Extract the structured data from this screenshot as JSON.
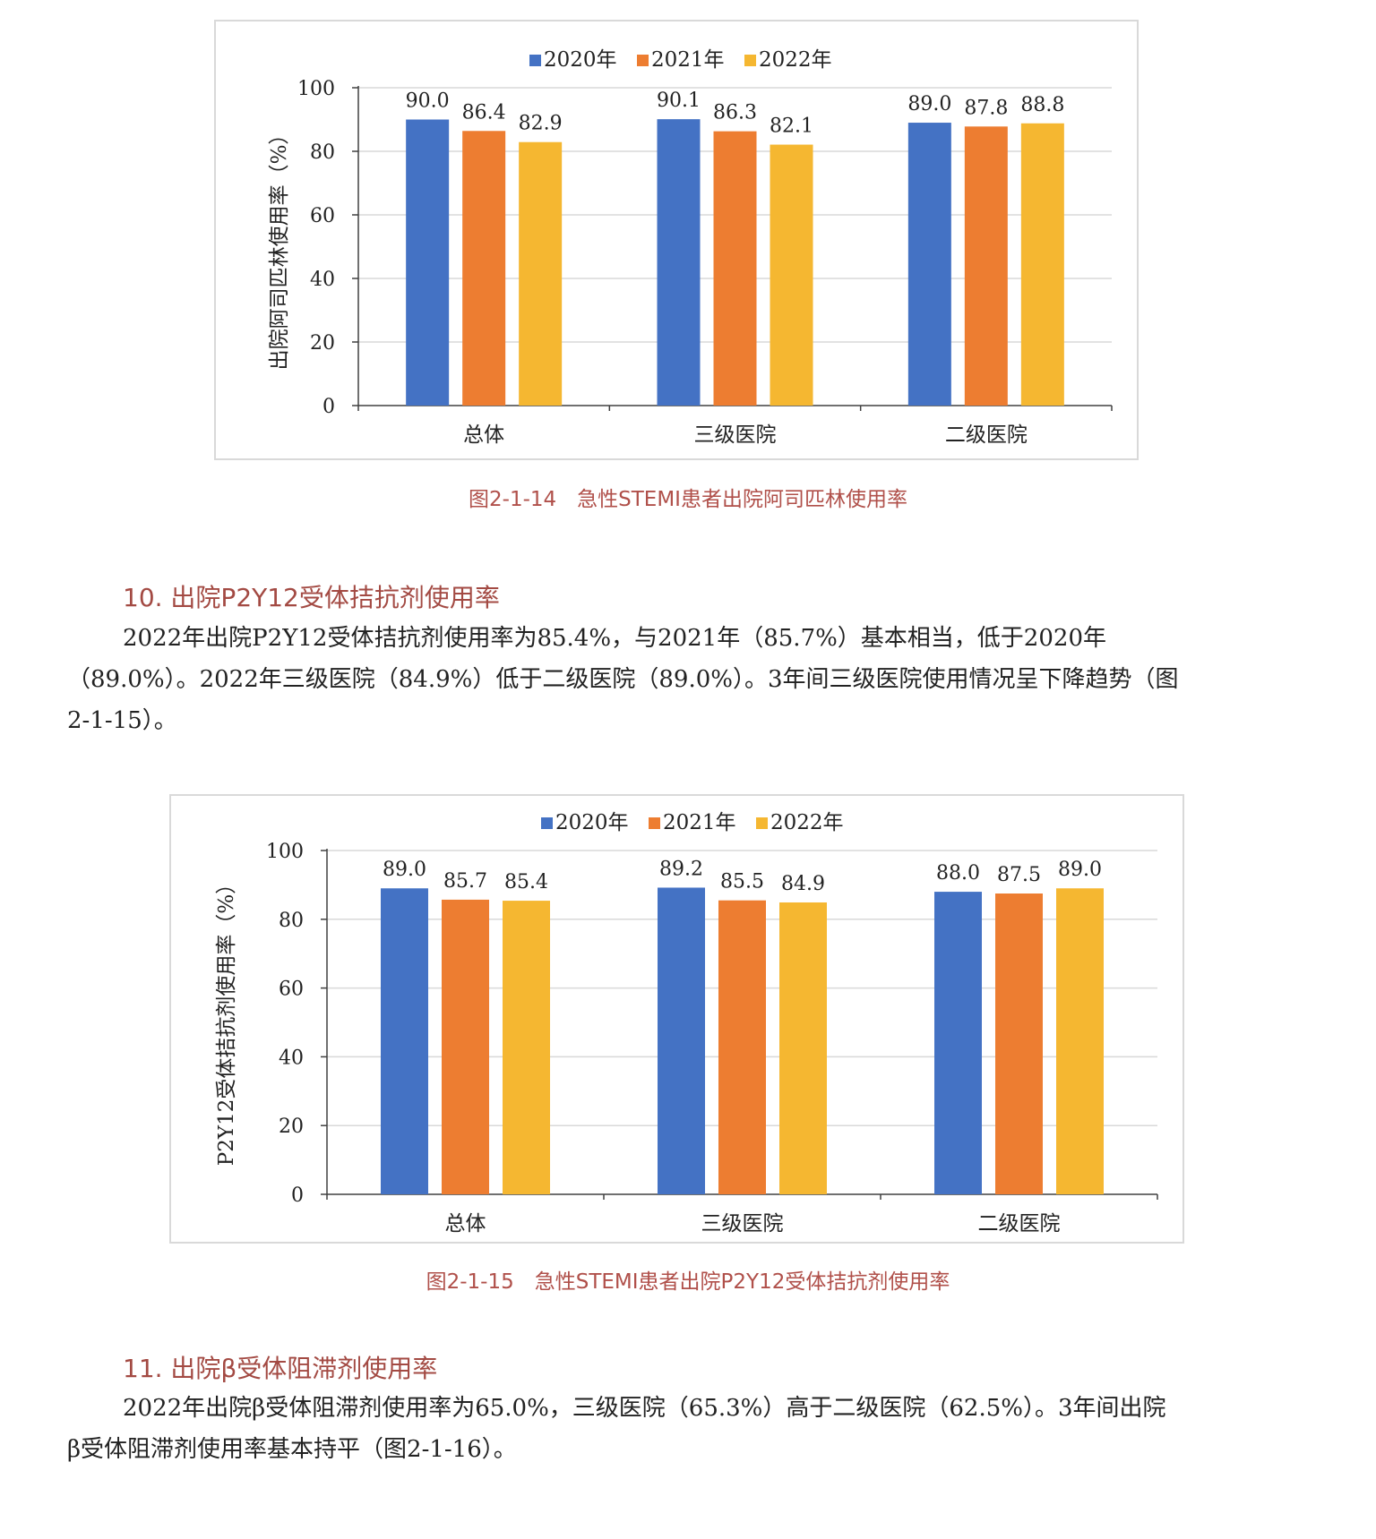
{
  "figure1": {
    "caption": "图2-1-14　急性STEMI患者出院阿司匹林使用率",
    "chart_data": {
      "type": "bar",
      "categories": [
        "总体",
        "三级医院",
        "二级医院"
      ],
      "series": [
        {
          "name": "2020年",
          "values": [
            90.0,
            90.1,
            89.0
          ]
        },
        {
          "name": "2021年",
          "values": [
            86.4,
            86.3,
            87.8
          ]
        },
        {
          "name": "2022年",
          "values": [
            82.9,
            82.1,
            88.8
          ]
        }
      ],
      "data_labels": [
        [
          "90.0",
          "90.1",
          "89.0"
        ],
        [
          "86.4",
          "86.3",
          "87.8"
        ],
        [
          "82.9",
          "82.1",
          "88.8"
        ]
      ],
      "ylabel": "出院阿司匹林使用率（%）",
      "ylim": [
        0,
        100
      ],
      "yticks": [
        "0",
        "20",
        "40",
        "60",
        "80",
        "100"
      ],
      "grid": true,
      "legend": "top-center"
    }
  },
  "section10": {
    "heading": "10.  出院P2Y12受体拮抗剂使用率",
    "lines": [
      "2022年出院P2Y12受体拮抗剂使用率为85.4%，与2021年（85.7%）基本相当，低于2020年",
      "（89.0%）。2022年三级医院（84.9%）低于二级医院（89.0%）。3年间三级医院使用情况呈下降趋势（图",
      "2-1-15）。"
    ]
  },
  "figure2": {
    "caption": "图2-1-15　急性STEMI患者出院P2Y12受体拮抗剂使用率",
    "chart_data": {
      "type": "bar",
      "categories": [
        "总体",
        "三级医院",
        "二级医院"
      ],
      "series": [
        {
          "name": "2020年",
          "values": [
            89.0,
            89.2,
            88.0
          ]
        },
        {
          "name": "2021年",
          "values": [
            85.7,
            85.5,
            87.5
          ]
        },
        {
          "name": "2022年",
          "values": [
            85.4,
            84.9,
            89.0
          ]
        }
      ],
      "data_labels": [
        [
          "89.0",
          "89.2",
          "88.0"
        ],
        [
          "85.7",
          "85.5",
          "87.5"
        ],
        [
          "85.4",
          "84.9",
          "89.0"
        ]
      ],
      "ylabel": "P2Y12受体拮抗剂使用率（%）",
      "ylim": [
        0,
        100
      ],
      "yticks": [
        "0",
        "20",
        "40",
        "60",
        "80",
        "100"
      ],
      "grid": true,
      "legend": "top-center"
    }
  },
  "section11": {
    "heading": "11.  出院β受体阻滞剂使用率",
    "lines": [
      "2022年出院β受体阻滞剂使用率为65.0%，三级医院（65.3%）高于二级医院（62.5%）。3年间出院",
      "β受体阻滞剂使用率基本持平（图2-1-16）。"
    ]
  },
  "colors": {
    "series": [
      "#4472c4",
      "#ed7d31",
      "#f5b731"
    ],
    "grid": "#d9d9d9",
    "axis": "#404040",
    "accent": "#a34a43"
  }
}
